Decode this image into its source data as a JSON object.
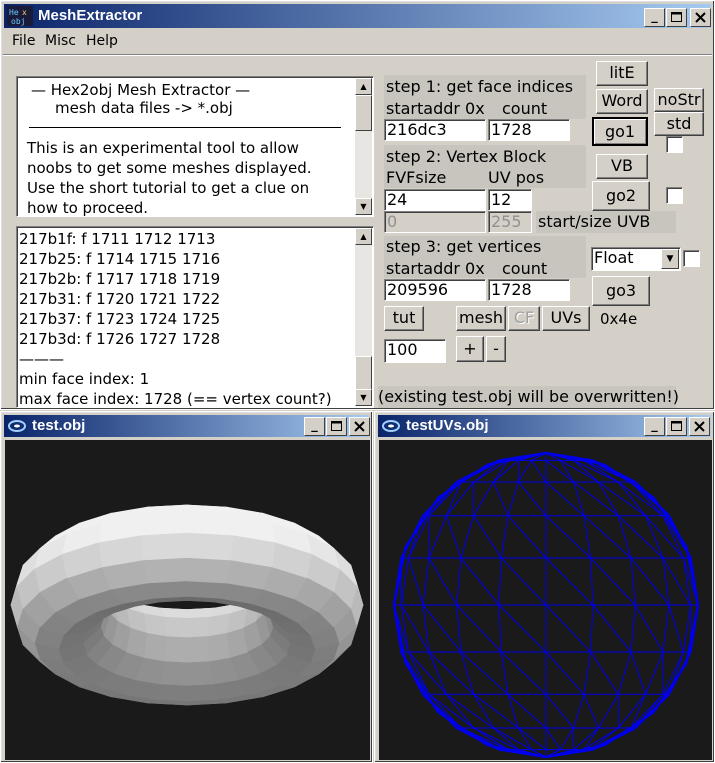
{
  "main_window": {
    "title": "MeshExtractor",
    "icon_text": "Hex obj",
    "controls": {
      "minimize": "_",
      "maximize": "□",
      "close": "✕"
    }
  },
  "menu": [
    "File",
    "Misc",
    "Help"
  ],
  "info_box": {
    "lines": [
      "—   Hex2obj Mesh Extractor   —",
      "mesh data files -> *.obj",
      "This is an experimental tool to allow",
      "noobs to get some meshes displayed.",
      "Use the short tutorial to get a clue on",
      "how to proceed."
    ]
  },
  "log_box": {
    "lines": [
      "217b1f: f  1711 1712 1713",
      "217b25: f  1714 1715 1716",
      "217b2b: f  1717 1718 1719",
      "217b31: f  1720 1721 1722",
      "217b37: f  1723 1724 1725",
      "217b3d: f  1726 1727 1728",
      "———",
      "min face index: 1",
      "max face index: 1728 (== vertex count?)"
    ]
  },
  "step1": {
    "title": "step 1: get face indices",
    "startaddr_label": "startaddr 0x",
    "count_label": "count",
    "startaddr_value": "216dc3",
    "count_value": "1728"
  },
  "step2": {
    "title": "step 2: Vertex Block",
    "fvf_label": "FVFsize",
    "uvpos_label": "UV pos",
    "fvf_value": "24",
    "uvpos_value": "12",
    "uvb_start": "0",
    "uvb_size": "255",
    "uvb_label": "start/size UVB"
  },
  "step3": {
    "title": "step 3: get vertices",
    "startaddr_label": "startaddr 0x",
    "count_label": "count",
    "startaddr_value": "209596",
    "count_value": "1728",
    "format_selected": "Float"
  },
  "buttons": {
    "litE": "litE",
    "word": "Word",
    "noStr": "noStr",
    "std": "std",
    "go1": "go1",
    "vb": "VB",
    "go2": "go2",
    "go3": "go3",
    "tut": "tut",
    "mesh": "mesh",
    "cf": "CF",
    "uvs": "UVs",
    "plus": "+",
    "minus": "-"
  },
  "hex_label": "0x4e",
  "zoom_value": "100",
  "warning": "(existing test.obj will be overwritten!)",
  "viewer_left": {
    "title": "test.obj"
  },
  "viewer_right": {
    "title": "testUVs.obj"
  },
  "colors": {
    "uv_wire": "#0000ee",
    "viewport_bg": "#1a1a1a",
    "title_active": "#0a246a"
  }
}
